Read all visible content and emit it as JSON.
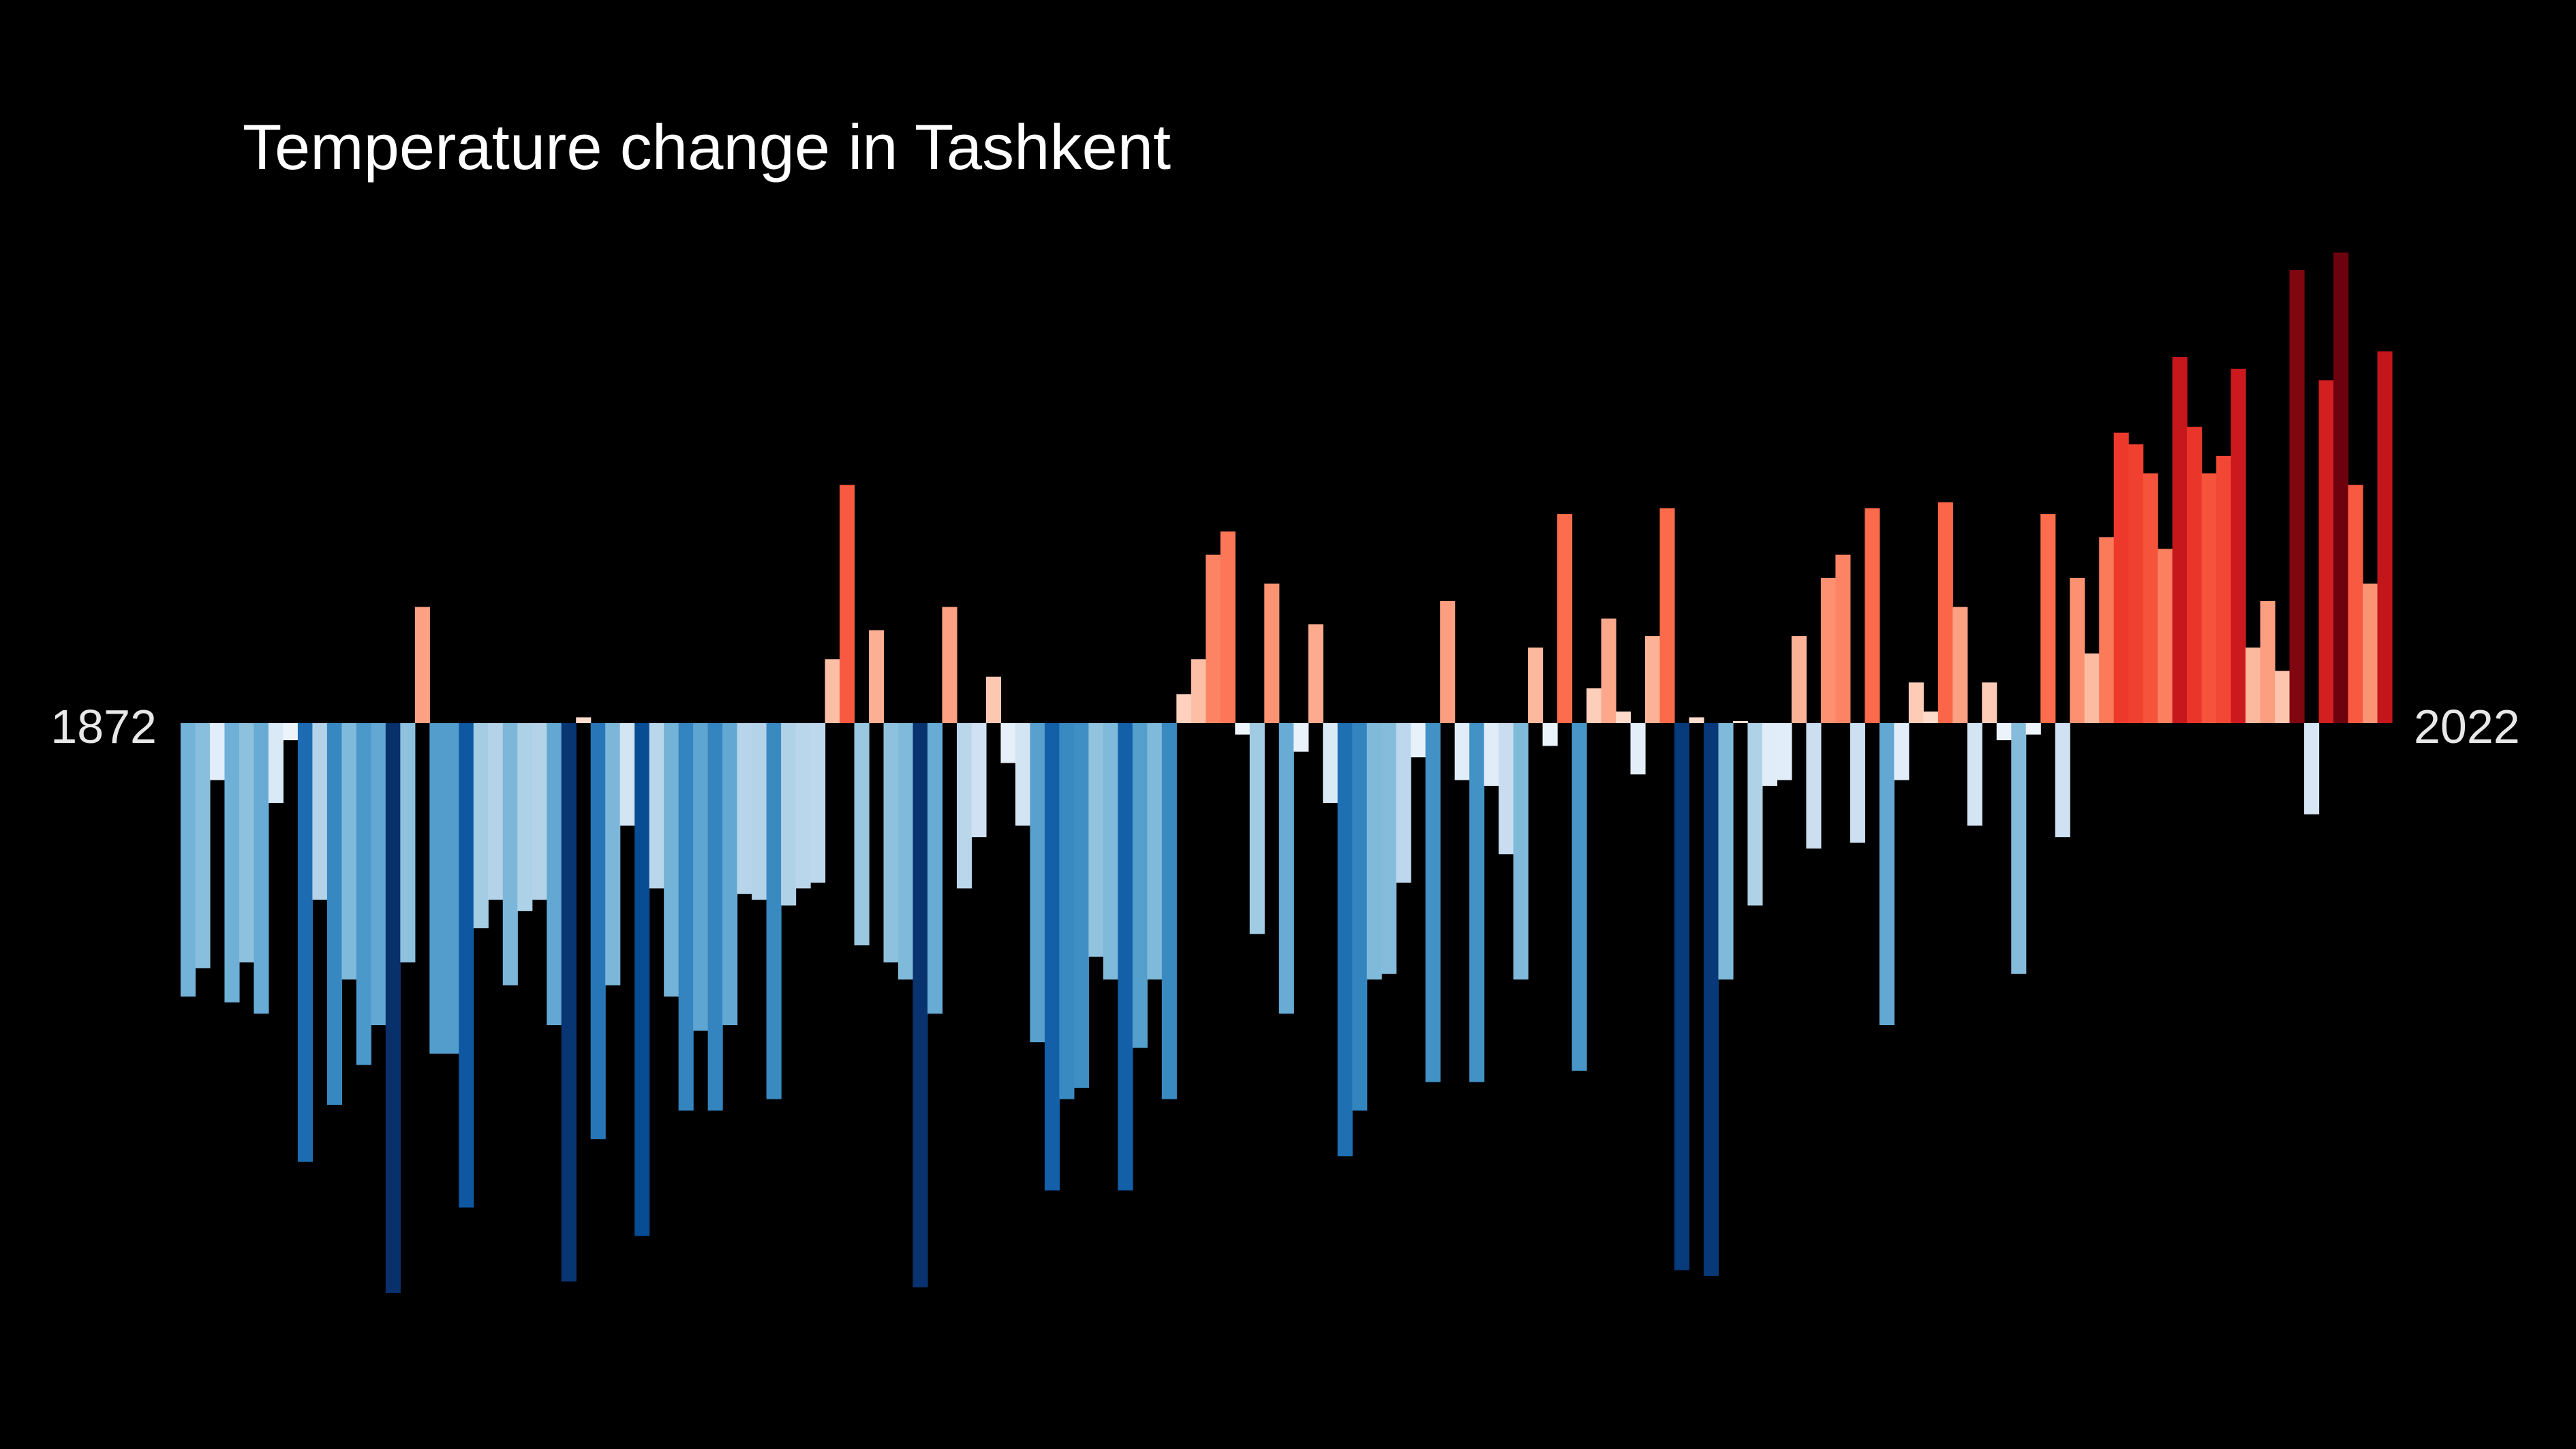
{
  "chart_data": {
    "type": "bar",
    "title": "Temperature change in Tashkent",
    "start_label": "1872",
    "end_label": "2022",
    "x_start": 1872,
    "x_end": 2022,
    "ylim": [
      -1.0,
      0.82
    ],
    "baseline": 0,
    "background_color": "#000000",
    "text_color": "#ffffff",
    "colormap": "RdBu_r",
    "values": [
      -0.48,
      -0.43,
      -0.1,
      -0.49,
      -0.42,
      -0.51,
      -0.14,
      -0.03,
      -0.77,
      -0.31,
      -0.67,
      -0.45,
      -0.6,
      -0.53,
      -1.0,
      -0.42,
      0.2,
      -0.58,
      -0.58,
      -0.85,
      -0.36,
      -0.31,
      -0.46,
      -0.33,
      -0.31,
      -0.53,
      -0.98,
      0.01,
      -0.73,
      -0.46,
      -0.18,
      -0.9,
      -0.29,
      -0.48,
      -0.68,
      -0.54,
      -0.68,
      -0.53,
      -0.3,
      -0.31,
      -0.66,
      -0.32,
      -0.29,
      -0.28,
      0.11,
      0.41,
      -0.39,
      0.16,
      -0.42,
      -0.45,
      -0.99,
      -0.51,
      0.2,
      -0.29,
      -0.2,
      0.08,
      -0.07,
      -0.18,
      -0.56,
      -0.82,
      -0.66,
      -0.64,
      -0.41,
      -0.45,
      -0.82,
      -0.57,
      -0.45,
      -0.66,
      0.05,
      0.11,
      0.29,
      0.33,
      -0.02,
      -0.37,
      0.24,
      -0.51,
      -0.05,
      0.17,
      -0.14,
      -0.76,
      -0.68,
      -0.45,
      -0.44,
      -0.28,
      -0.06,
      -0.63,
      0.21,
      -0.1,
      -0.63,
      -0.11,
      -0.23,
      -0.45,
      0.13,
      -0.04,
      0.36,
      -0.61,
      0.06,
      0.18,
      0.02,
      -0.09,
      0.15,
      0.37,
      -0.96,
      0.01,
      -0.97,
      -0.45,
      0.0,
      -0.32,
      -0.11,
      -0.1,
      0.15,
      -0.22,
      0.25,
      0.29,
      -0.21,
      0.37,
      -0.53,
      -0.1,
      0.07,
      0.02,
      0.38,
      0.2,
      -0.18,
      0.07,
      -0.03,
      -0.44,
      -0.02,
      0.36,
      -0.2,
      0.25,
      0.12,
      0.32,
      0.5,
      0.48,
      0.43,
      0.3,
      0.63,
      0.51,
      0.43,
      0.46,
      0.61,
      0.13,
      0.21,
      0.09,
      0.78,
      -0.16,
      0.59,
      0.81,
      0.41,
      0.24,
      0.64
    ]
  }
}
